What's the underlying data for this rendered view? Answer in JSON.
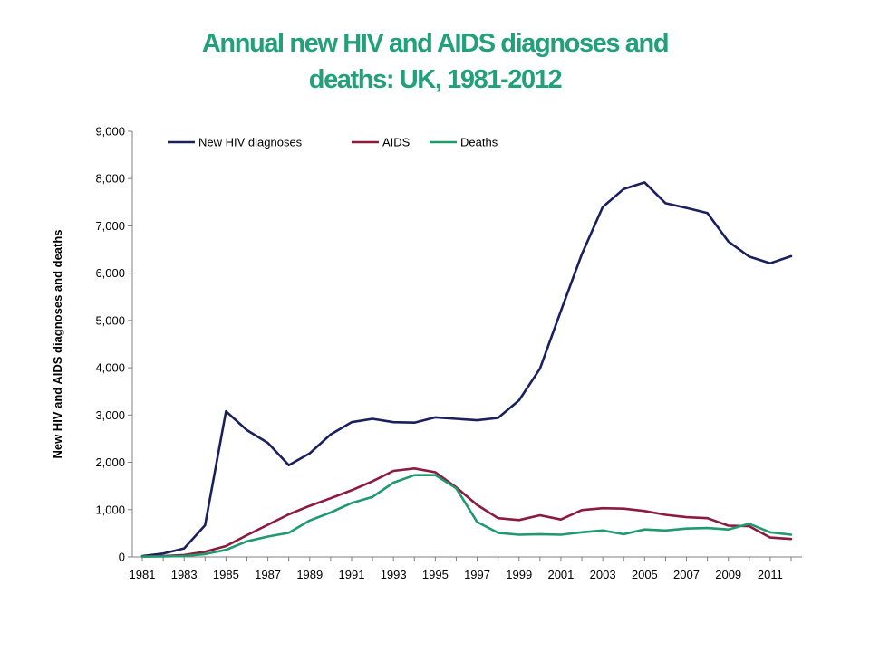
{
  "chart_data": {
    "type": "line",
    "title": [
      "Annual new HIV and AIDS diagnoses and",
      "deaths: UK, 1981-2012"
    ],
    "xlabel": "",
    "ylabel": "New HIV and AIDS diagnoses and deaths",
    "ylim": [
      0,
      9000
    ],
    "xlim": [
      1981,
      2012
    ],
    "y_ticks": [
      "0",
      "1,000",
      "2,000",
      "3,000",
      "4,000",
      "5,000",
      "6,000",
      "7,000",
      "8,000",
      "9,000"
    ],
    "x_ticks": [
      "1981",
      "1983",
      "1985",
      "1987",
      "1989",
      "1991",
      "1993",
      "1995",
      "1997",
      "1999",
      "2001",
      "2003",
      "2005",
      "2007",
      "2009",
      "2011"
    ],
    "grid": false,
    "legend": "top-left",
    "x": [
      1981,
      1982,
      1983,
      1984,
      1985,
      1986,
      1987,
      1988,
      1989,
      1990,
      1991,
      1992,
      1993,
      1994,
      1995,
      1996,
      1997,
      1998,
      1999,
      2000,
      2001,
      2002,
      2003,
      2004,
      2005,
      2006,
      2007,
      2008,
      2009,
      2010,
      2011,
      2012
    ],
    "series": [
      {
        "name": "New HIV diagnoses",
        "color": "#1a1f5e",
        "values": [
          20,
          70,
          180,
          670,
          3080,
          2680,
          2410,
          1940,
          2190,
          2590,
          2850,
          2920,
          2850,
          2840,
          2950,
          2920,
          2890,
          2940,
          3310,
          3980,
          5200,
          6400,
          7400,
          7780,
          7920,
          7480,
          7380,
          7270,
          6670,
          6350,
          6210,
          6360
        ]
      },
      {
        "name": "AIDS",
        "color": "#8b1a3e",
        "values": [
          10,
          20,
          40,
          110,
          230,
          460,
          680,
          900,
          1080,
          1240,
          1410,
          1600,
          1820,
          1870,
          1790,
          1470,
          1100,
          820,
          780,
          880,
          790,
          990,
          1030,
          1020,
          970,
          890,
          840,
          820,
          660,
          650,
          410,
          380
        ]
      },
      {
        "name": "Deaths",
        "color": "#1f9a6e",
        "values": [
          5,
          10,
          20,
          60,
          150,
          330,
          430,
          510,
          770,
          940,
          1140,
          1270,
          1570,
          1730,
          1730,
          1450,
          740,
          510,
          470,
          480,
          470,
          520,
          560,
          480,
          580,
          560,
          600,
          610,
          580,
          700,
          520,
          470
        ]
      }
    ]
  }
}
